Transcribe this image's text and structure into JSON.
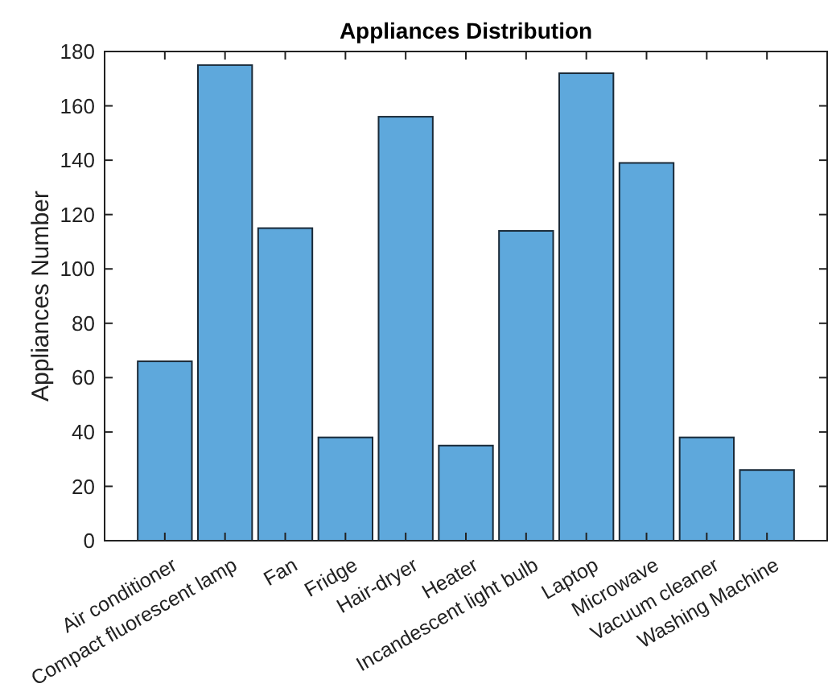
{
  "chart_data": {
    "type": "bar",
    "title": "Appliances Distribution",
    "ylabel": "Appliances Number",
    "categories": [
      "Air conditioner",
      "Compact fluorescent lamp",
      "Fan",
      "Fridge",
      "Hair-dryer",
      "Heater",
      "Incandescent light bulb",
      "Laptop",
      "Microwave",
      "Vacuum cleaner",
      "Washing Machine"
    ],
    "values": [
      66,
      175,
      115,
      38,
      156,
      35,
      114,
      172,
      139,
      38,
      26
    ],
    "color": "#5ea8dc",
    "ylim": [
      0,
      180
    ],
    "yticks": [
      0,
      20,
      40,
      60,
      80,
      100,
      120,
      140,
      160,
      180
    ],
    "grid": false
  }
}
